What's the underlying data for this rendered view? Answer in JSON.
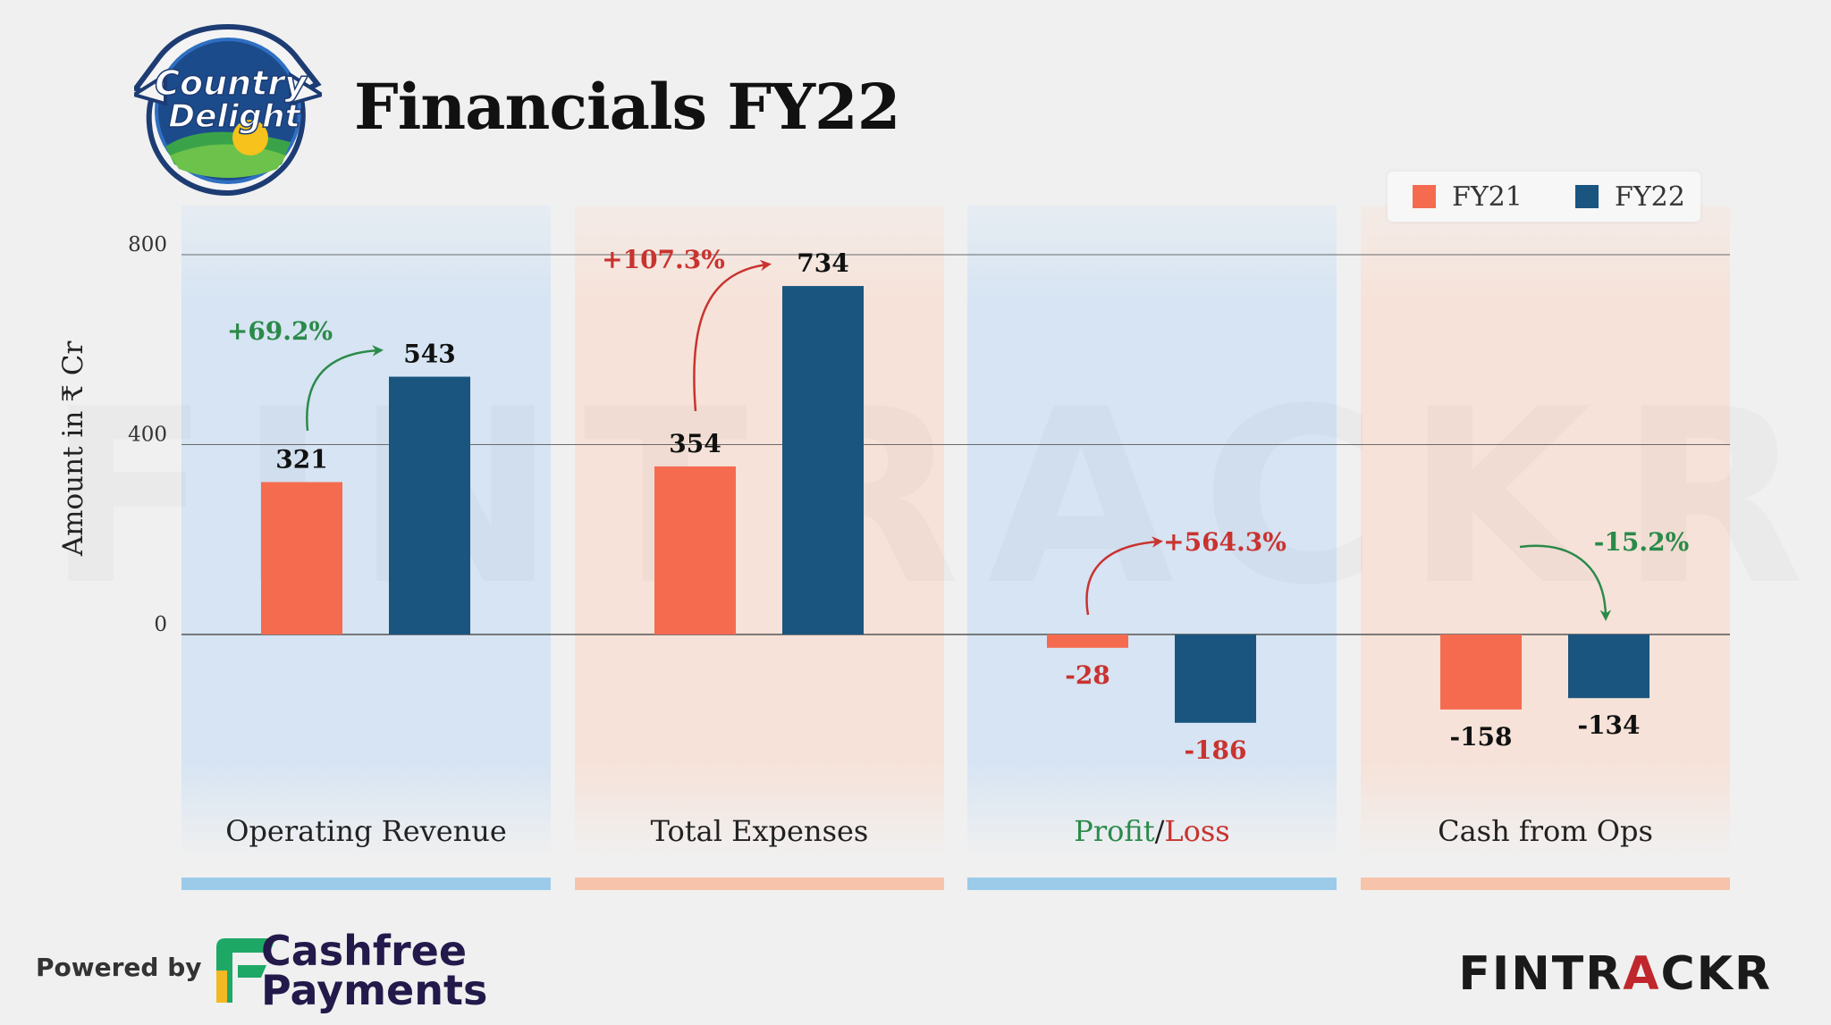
{
  "title": "Financials FY22",
  "logo": {
    "line1": "Country",
    "line2": "Delight"
  },
  "legend": [
    {
      "label": "FY21",
      "color": "#f56b50"
    },
    {
      "label": "FY22",
      "color": "#1a5580"
    }
  ],
  "footer": {
    "powered_by": "Powered by",
    "cashfree_line1": "Cashfree",
    "cashfree_line2": "Payments",
    "brand_pre": "FINTR",
    "brand_accent": "A",
    "brand_post": "CKR"
  },
  "watermark": "FINTRACKR",
  "chart_data": {
    "type": "bar",
    "ylabel": "Amount in ₹ Cr",
    "ylim": [
      -400,
      800
    ],
    "yticks": [
      0,
      400,
      800
    ],
    "series": [
      {
        "name": "FY21",
        "values": [
          321,
          354,
          -28,
          -158
        ],
        "color": "#f56b50"
      },
      {
        "name": "FY22",
        "values": [
          543,
          734,
          -186,
          -134
        ],
        "color": "#1a5580"
      }
    ],
    "categories": [
      "Operating Revenue",
      "Total Expenses",
      "Profit/Loss",
      "Cash from Ops"
    ],
    "category_label_parts": [
      [
        {
          "text": "Operating Revenue",
          "color": "#222222"
        }
      ],
      [
        {
          "text": "Total Expenses",
          "color": "#222222"
        }
      ],
      [
        {
          "text": "Profit",
          "color": "#2b8a4a"
        },
        {
          "text": "/",
          "color": "#222222"
        },
        {
          "text": "Loss",
          "color": "#c9332f"
        }
      ],
      [
        {
          "text": "Cash from Ops",
          "color": "#222222"
        }
      ]
    ],
    "value_labels": [
      [
        "321",
        "543"
      ],
      [
        "354",
        "734"
      ],
      [
        "-28",
        "-186"
      ],
      [
        "-158",
        "-134"
      ]
    ],
    "value_label_colors": [
      [
        "#111111",
        "#111111"
      ],
      [
        "#111111",
        "#111111"
      ],
      [
        "#c9332f",
        "#c9332f"
      ],
      [
        "#111111",
        "#111111"
      ]
    ],
    "changes": [
      {
        "label": "+69.2%",
        "color": "#2b8a4a"
      },
      {
        "label": "+107.3%",
        "color": "#c9332f"
      },
      {
        "label": "+564.3%",
        "color": "#c9332f"
      },
      {
        "label": "-15.2%",
        "color": "#2b8a4a"
      }
    ],
    "panel_colors": [
      "#d6e4f3",
      "#f6e2d8",
      "#d6e4f3",
      "#f6e2d8"
    ],
    "strip_colors": [
      "#9ccbea",
      "#f7c4ab",
      "#9ccbea",
      "#f7c4ab"
    ]
  }
}
